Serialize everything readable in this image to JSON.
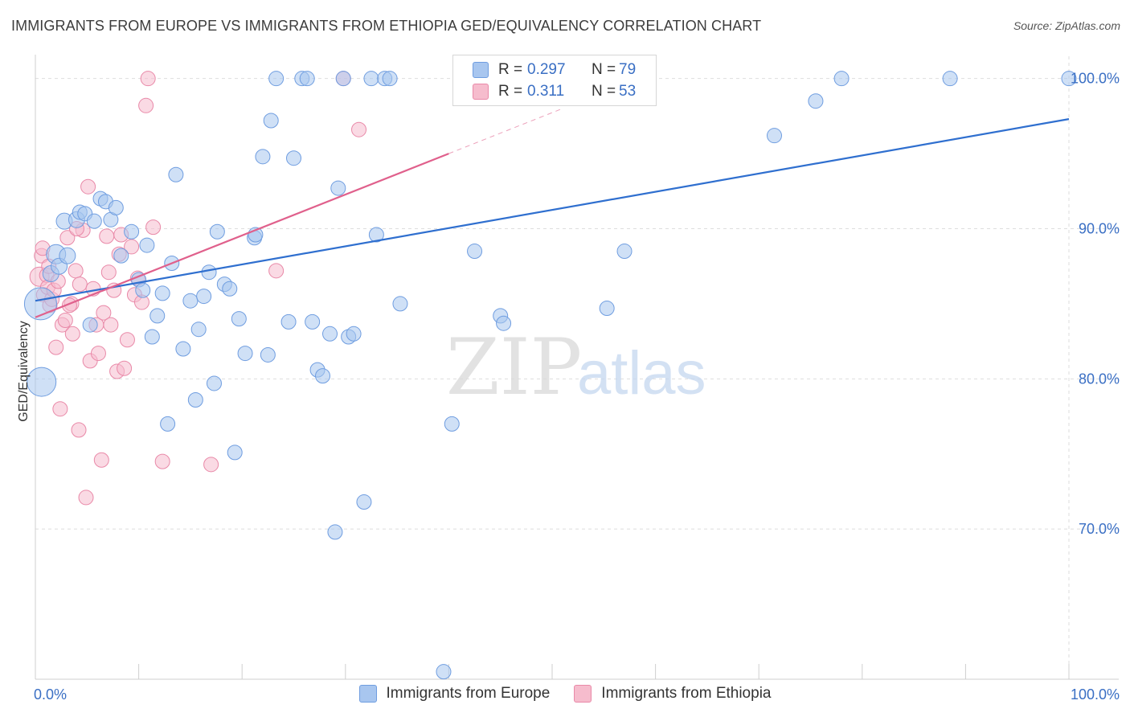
{
  "title": "IMMIGRANTS FROM EUROPE VS IMMIGRANTS FROM ETHIOPIA GED/EQUIVALENCY CORRELATION CHART",
  "source": "Source: ZipAtlas.com",
  "watermark": {
    "zip": "ZIP",
    "atlas": "atlas"
  },
  "legend": {
    "rows": [
      {
        "r_label": "R =",
        "r_value": "0.297",
        "n_label": "N =",
        "n_value": "79",
        "color": "#a8c6ef",
        "border": "#6f9de0"
      },
      {
        "r_label": "R =",
        "r_value": "0.311",
        "n_label": "N =",
        "n_value": "53",
        "color": "#f6bccd",
        "border": "#e989a8"
      }
    ]
  },
  "bottom_legend": [
    "Immigrants from Europe",
    "Immigrants from Ethiopia"
  ],
  "colors": {
    "europe_fill": "#a8c6ef",
    "europe_stroke": "#6f9de0",
    "europe_line": "#2f6fcf",
    "ethiopia_fill": "#f6bccd",
    "ethiopia_stroke": "#e989a8",
    "ethiopia_line": "#e0608c",
    "axis_text": "#3a6fc4",
    "grid": "#dedede"
  },
  "chart_data": {
    "type": "scatter",
    "title": "IMMIGRANTS FROM EUROPE VS IMMIGRANTS FROM ETHIOPIA GED/EQUIVALENCY CORRELATION CHART",
    "xlabel": "",
    "ylabel": "GED/Equivalency",
    "xlim": [
      0,
      100
    ],
    "ylim": [
      60,
      101
    ],
    "x_ticks": [
      "0.0%",
      "100.0%"
    ],
    "y_ticks": [
      {
        "value": 70,
        "label": "70.0%"
      },
      {
        "value": 80,
        "label": "80.0%"
      },
      {
        "value": 90,
        "label": "90.0%"
      },
      {
        "value": 100,
        "label": "100.0%"
      }
    ],
    "series": [
      {
        "name": "Immigrants from Europe",
        "R": 0.297,
        "N": 79,
        "trend": {
          "x": [
            0,
            100
          ],
          "y": [
            85.2,
            97.3
          ]
        },
        "points": [
          [
            0.5,
            85.0,
            20
          ],
          [
            0.6,
            79.8,
            18
          ],
          [
            1.5,
            87.0,
            10
          ],
          [
            2.0,
            88.3,
            12
          ],
          [
            2.3,
            87.5,
            10
          ],
          [
            2.8,
            90.5,
            10
          ],
          [
            3.1,
            88.2,
            10
          ],
          [
            4.0,
            90.6,
            10
          ],
          [
            4.3,
            91.1,
            9
          ],
          [
            4.8,
            91.0,
            9
          ],
          [
            5.3,
            83.6,
            9
          ],
          [
            5.7,
            90.5,
            9
          ],
          [
            6.3,
            92.0,
            9
          ],
          [
            6.8,
            91.8,
            9
          ],
          [
            7.3,
            90.6,
            9
          ],
          [
            7.8,
            91.4,
            9
          ],
          [
            8.3,
            88.2,
            9
          ],
          [
            9.3,
            89.8,
            9
          ],
          [
            10.0,
            86.6,
            9
          ],
          [
            10.4,
            85.9,
            9
          ],
          [
            10.8,
            88.9,
            9
          ],
          [
            11.3,
            82.8,
            9
          ],
          [
            11.8,
            84.2,
            9
          ],
          [
            12.3,
            85.7,
            9
          ],
          [
            12.8,
            77.0,
            9
          ],
          [
            13.2,
            87.7,
            9
          ],
          [
            13.6,
            93.6,
            9
          ],
          [
            14.3,
            82.0,
            9
          ],
          [
            15.0,
            85.2,
            9
          ],
          [
            15.5,
            78.6,
            9
          ],
          [
            15.8,
            83.3,
            9
          ],
          [
            16.3,
            85.5,
            9
          ],
          [
            16.8,
            87.1,
            9
          ],
          [
            17.3,
            79.7,
            9
          ],
          [
            17.6,
            89.8,
            9
          ],
          [
            18.3,
            86.3,
            9
          ],
          [
            18.8,
            86.0,
            9
          ],
          [
            19.3,
            75.1,
            9
          ],
          [
            19.7,
            84.0,
            9
          ],
          [
            20.3,
            81.7,
            9
          ],
          [
            21.2,
            89.4,
            9
          ],
          [
            21.3,
            89.6,
            9
          ],
          [
            22.0,
            94.8,
            9
          ],
          [
            22.5,
            81.6,
            9
          ],
          [
            22.8,
            97.2,
            9
          ],
          [
            23.3,
            100.0,
            9
          ],
          [
            24.5,
            83.8,
            9
          ],
          [
            25.0,
            94.7,
            9
          ],
          [
            25.8,
            100.0,
            9
          ],
          [
            26.3,
            100.0,
            9
          ],
          [
            26.8,
            83.8,
            9
          ],
          [
            27.3,
            80.6,
            9
          ],
          [
            27.8,
            80.2,
            9
          ],
          [
            28.5,
            83.0,
            9
          ],
          [
            29.0,
            69.8,
            9
          ],
          [
            29.3,
            92.7,
            9
          ],
          [
            29.8,
            100.0,
            9
          ],
          [
            30.3,
            82.8,
            9
          ],
          [
            30.8,
            83.0,
            9
          ],
          [
            31.8,
            71.8,
            9
          ],
          [
            32.5,
            100.0,
            9
          ],
          [
            33.0,
            89.6,
            9
          ],
          [
            33.8,
            100.0,
            9
          ],
          [
            34.3,
            100.0,
            9
          ],
          [
            35.3,
            85.0,
            9
          ],
          [
            39.5,
            60.5,
            9
          ],
          [
            40.3,
            77.0,
            9
          ],
          [
            42.5,
            88.5,
            9
          ],
          [
            45.0,
            84.2,
            9
          ],
          [
            45.3,
            83.7,
            9
          ],
          [
            46.8,
            100.0,
            9
          ],
          [
            50.5,
            100.0,
            9
          ],
          [
            55.3,
            84.7,
            9
          ],
          [
            57.0,
            88.5,
            9
          ],
          [
            71.5,
            96.2,
            9
          ],
          [
            75.5,
            98.5,
            9
          ],
          [
            78.0,
            100.0,
            9
          ],
          [
            88.5,
            100.0,
            9
          ],
          [
            100.0,
            100.0,
            9
          ]
        ]
      },
      {
        "name": "Immigrants from Ethiopia",
        "R": 0.311,
        "N": 53,
        "trend": {
          "x": [
            0,
            40
          ],
          "y": [
            84.1,
            95.0
          ]
        },
        "trend_dashed": {
          "x": [
            40,
            51
          ],
          "y": [
            95.0,
            98.0
          ]
        },
        "points": [
          [
            0.4,
            86.8,
            12
          ],
          [
            0.6,
            88.2,
            9
          ],
          [
            0.8,
            85.6,
            9
          ],
          [
            1.1,
            86.9,
            9
          ],
          [
            1.2,
            86.1,
            9
          ],
          [
            1.4,
            84.9,
            9
          ],
          [
            1.6,
            85.3,
            9
          ],
          [
            1.8,
            85.9,
            9
          ],
          [
            2.0,
            82.1,
            9
          ],
          [
            2.4,
            78.0,
            9
          ],
          [
            2.6,
            83.6,
            9
          ],
          [
            2.9,
            83.9,
            9
          ],
          [
            3.1,
            89.4,
            9
          ],
          [
            3.5,
            85.0,
            9
          ],
          [
            3.6,
            83.0,
            9
          ],
          [
            3.9,
            87.2,
            9
          ],
          [
            4.2,
            76.6,
            9
          ],
          [
            4.3,
            86.3,
            9
          ],
          [
            4.6,
            89.9,
            9
          ],
          [
            4.9,
            72.1,
            9
          ],
          [
            5.1,
            92.8,
            9
          ],
          [
            5.3,
            81.2,
            9
          ],
          [
            5.6,
            86.0,
            9
          ],
          [
            5.9,
            83.6,
            9
          ],
          [
            6.1,
            81.7,
            9
          ],
          [
            6.4,
            74.6,
            9
          ],
          [
            6.6,
            84.4,
            9
          ],
          [
            6.9,
            89.5,
            9
          ],
          [
            7.1,
            87.1,
            9
          ],
          [
            7.3,
            83.6,
            9
          ],
          [
            7.6,
            85.9,
            9
          ],
          [
            7.9,
            80.5,
            9
          ],
          [
            8.1,
            88.3,
            9
          ],
          [
            8.3,
            89.6,
            9
          ],
          [
            8.6,
            80.7,
            9
          ],
          [
            8.9,
            82.6,
            9
          ],
          [
            9.3,
            88.8,
            9
          ],
          [
            9.6,
            85.6,
            9
          ],
          [
            9.9,
            86.7,
            9
          ],
          [
            10.3,
            85.1,
            9
          ],
          [
            10.7,
            98.2,
            9
          ],
          [
            10.9,
            100.0,
            9
          ],
          [
            11.4,
            90.1,
            9
          ],
          [
            12.3,
            74.5,
            9
          ],
          [
            17.0,
            74.3,
            9
          ],
          [
            23.3,
            87.2,
            9
          ],
          [
            29.8,
            100.0,
            9
          ],
          [
            31.3,
            96.6,
            9
          ],
          [
            0.7,
            88.7,
            9
          ],
          [
            1.3,
            87.5,
            9
          ],
          [
            2.2,
            86.5,
            9
          ],
          [
            3.3,
            84.9,
            9
          ],
          [
            4.0,
            90.0,
            9
          ]
        ]
      }
    ]
  }
}
